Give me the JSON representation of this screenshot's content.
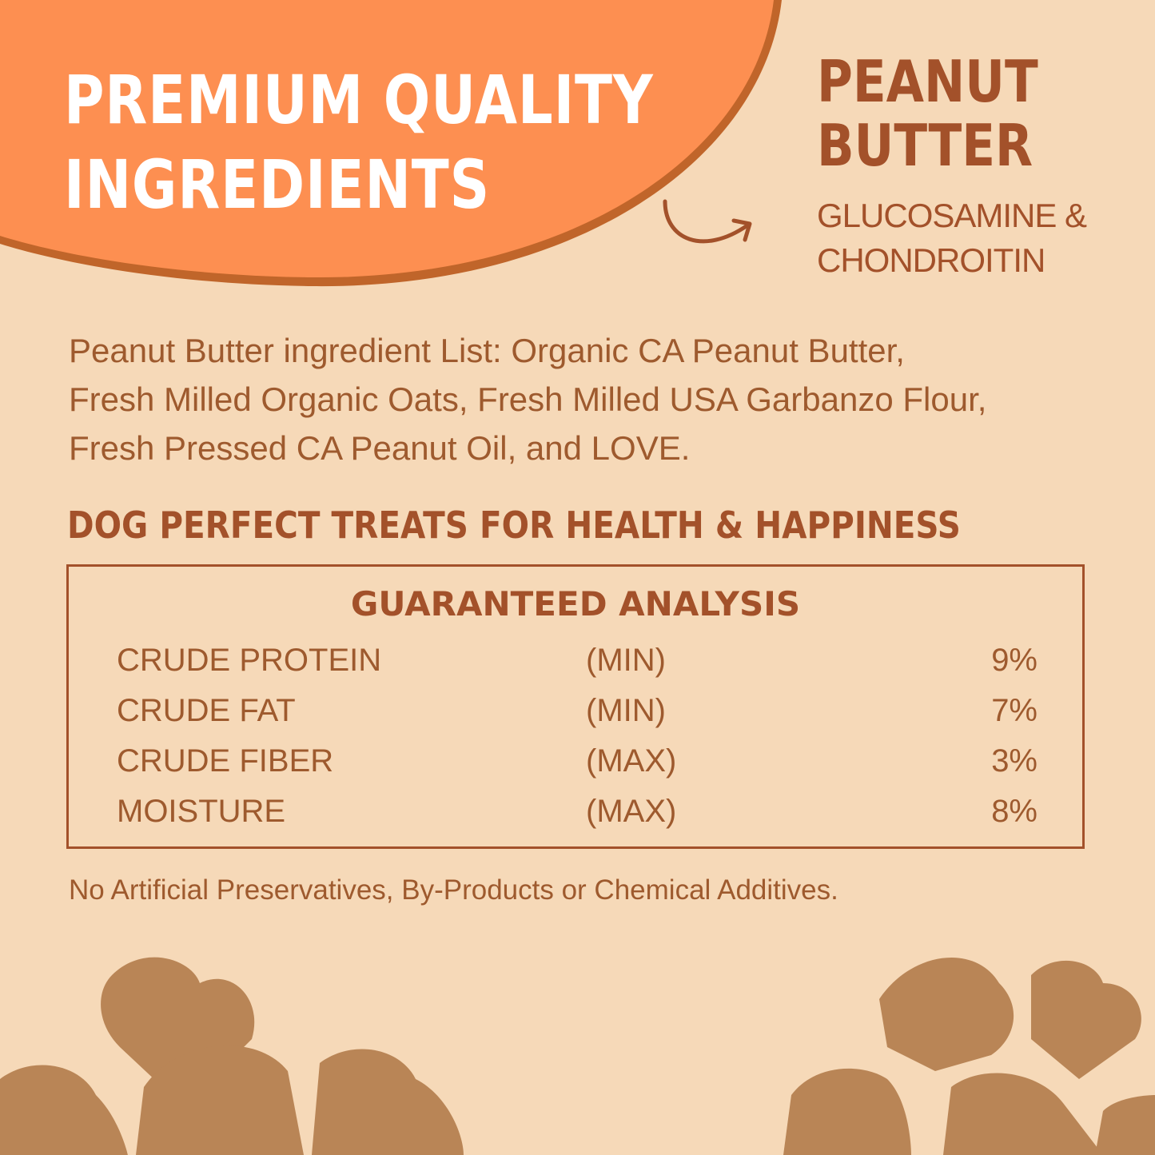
{
  "headline": {
    "line1": "PREMIUM QUALITY",
    "line2": "INGREDIENTS"
  },
  "flavor": {
    "line1": "PEANUT",
    "line2": "BUTTER",
    "sub1": "GLUCOSAMINE &",
    "sub2": "CHONDROITIN"
  },
  "ingredients": {
    "line1": "Peanut Butter ingredient List: Organic CA Peanut Butter,",
    "line2": "Fresh Milled Organic Oats, Fresh Milled USA Garbanzo Flour,",
    "line3": "Fresh Pressed CA Peanut Oil, and LOVE."
  },
  "tagline": "DOG PERFECT TREATS FOR HEALTH & HAPPINESS",
  "analysis": {
    "title": "GUARANTEED ANALYSIS",
    "rows": [
      {
        "name": "CRUDE PROTEIN",
        "qualifier": "(MIN)",
        "value": "9%"
      },
      {
        "name": "CRUDE FAT",
        "qualifier": "(MIN)",
        "value": "7%"
      },
      {
        "name": "CRUDE FIBER",
        "qualifier": "(MAX)",
        "value": "3%"
      },
      {
        "name": "MOISTURE",
        "qualifier": "(MAX)",
        "value": "8%"
      }
    ]
  },
  "note": "No Artificial Preservatives, By-Products or Chemical Additives.",
  "colors": {
    "background": "#f6d9b8",
    "orange": "#fd8f51",
    "brown": "#a3512a",
    "treat": "#b98556"
  }
}
